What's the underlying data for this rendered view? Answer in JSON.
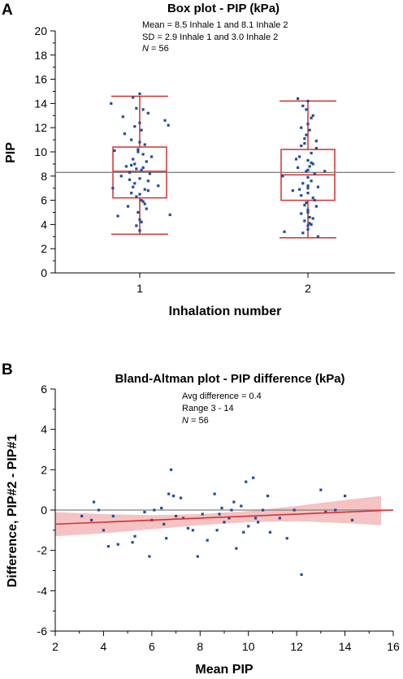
{
  "chart_data": [
    {
      "panel": "A",
      "type": "box",
      "title": "Box plot - PIP (kPa)",
      "annotations": [
        "Mean = 8.5 Inhale 1 and 8.1 Inhale 2",
        "SD = 2.9 Inhale 1 and 3.0 Inhale 2",
        "N = 56"
      ],
      "xlabel": "Inhalation number",
      "ylabel": "PIP",
      "categories": [
        "1",
        "2"
      ],
      "ylim": [
        0,
        20
      ],
      "yticks": [
        0,
        2,
        4,
        6,
        8,
        10,
        12,
        14,
        16,
        18,
        20
      ],
      "reference_line": 8.3,
      "colors": {
        "box": "#d62f2f",
        "points": "#1f4e9a",
        "reference": "#808080"
      },
      "boxes": [
        {
          "category": "1",
          "min": 3.2,
          "q1": 6.2,
          "median": 8.4,
          "q3": 10.4,
          "max": 14.6
        },
        {
          "category": "2",
          "min": 2.9,
          "q1": 6.0,
          "median": 8.1,
          "q3": 10.2,
          "max": 14.2
        }
      ],
      "points": [
        [
          0.83,
          14.0
        ],
        [
          1.0,
          14.8
        ],
        [
          0.96,
          14.5
        ],
        [
          0.98,
          13.6
        ],
        [
          1.02,
          13.5
        ],
        [
          0.9,
          12.9
        ],
        [
          1.05,
          13.2
        ],
        [
          0.97,
          12.1
        ],
        [
          1.01,
          11.8
        ],
        [
          1.15,
          12.6
        ],
        [
          1.17,
          12.2
        ],
        [
          0.95,
          11.0
        ],
        [
          1.0,
          10.8
        ],
        [
          1.03,
          10.6
        ],
        [
          0.85,
          10.1
        ],
        [
          0.99,
          10.2
        ],
        [
          1.02,
          9.8
        ],
        [
          0.96,
          9.4
        ],
        [
          1.04,
          9.2
        ],
        [
          0.92,
          8.8
        ],
        [
          0.98,
          8.6
        ],
        [
          1.01,
          8.5
        ],
        [
          0.94,
          8.3
        ],
        [
          1.06,
          8.2
        ],
        [
          0.89,
          8.0
        ],
        [
          1.0,
          7.8
        ],
        [
          1.05,
          7.6
        ],
        [
          0.97,
          7.4
        ],
        [
          0.84,
          7.0
        ],
        [
          1.03,
          6.9
        ],
        [
          1.11,
          7.2
        ],
        [
          0.95,
          6.6
        ],
        [
          1.0,
          6.5
        ],
        [
          0.98,
          6.3
        ],
        [
          1.02,
          5.9
        ],
        [
          0.93,
          5.5
        ],
        [
          1.04,
          5.3
        ],
        [
          0.99,
          5.0
        ],
        [
          0.87,
          4.7
        ],
        [
          1.18,
          4.8
        ],
        [
          1.01,
          4.2
        ],
        [
          0.98,
          3.9
        ],
        [
          1.0,
          3.5
        ],
        [
          0.95,
          8.9
        ],
        [
          1.07,
          9.6
        ],
        [
          0.91,
          11.5
        ],
        [
          1.0,
          12.4
        ],
        [
          0.96,
          7.1
        ],
        [
          1.03,
          5.7
        ],
        [
          0.99,
          10.0
        ],
        [
          1.01,
          6.0
        ],
        [
          0.97,
          9.0
        ],
        [
          1.02,
          8.7
        ],
        [
          0.94,
          7.7
        ],
        [
          1.05,
          6.8
        ],
        [
          1.0,
          4.4
        ],
        [
          1.94,
          14.4
        ],
        [
          2.0,
          14.2
        ],
        [
          1.99,
          13.5
        ],
        [
          2.03,
          13.0
        ],
        [
          2.0,
          12.3
        ],
        [
          2.01,
          11.8
        ],
        [
          1.98,
          11.1
        ],
        [
          2.05,
          10.9
        ],
        [
          1.96,
          10.5
        ],
        [
          2.02,
          9.9
        ],
        [
          1.95,
          9.6
        ],
        [
          2.0,
          9.3
        ],
        [
          2.03,
          9.0
        ],
        [
          1.94,
          8.7
        ],
        [
          1.99,
          8.4
        ],
        [
          2.1,
          8.4
        ],
        [
          2.04,
          8.2
        ],
        [
          1.85,
          8.0
        ],
        [
          2.0,
          7.9
        ],
        [
          2.02,
          7.6
        ],
        [
          1.97,
          7.4
        ],
        [
          2.06,
          7.1
        ],
        [
          1.91,
          6.8
        ],
        [
          2.0,
          6.6
        ],
        [
          1.96,
          6.4
        ],
        [
          2.03,
          6.2
        ],
        [
          1.99,
          5.8
        ],
        [
          2.05,
          5.5
        ],
        [
          2.0,
          5.2
        ],
        [
          1.96,
          4.9
        ],
        [
          2.01,
          4.6
        ],
        [
          1.98,
          4.3
        ],
        [
          2.02,
          4.0
        ],
        [
          2.0,
          3.6
        ],
        [
          1.97,
          3.3
        ],
        [
          2.06,
          3.0
        ],
        [
          1.86,
          3.4
        ],
        [
          2.0,
          5.0
        ],
        [
          1.98,
          10.7
        ],
        [
          2.02,
          12.8
        ],
        [
          2.0,
          7.0
        ],
        [
          1.93,
          9.4
        ],
        [
          2.04,
          6.0
        ],
        [
          1.99,
          11.4
        ],
        [
          2.01,
          8.8
        ],
        [
          2.03,
          4.5
        ],
        [
          1.95,
          6.9
        ],
        [
          2.0,
          3.9
        ],
        [
          1.97,
          13.8
        ],
        [
          2.02,
          9.1
        ],
        [
          2.0,
          7.2
        ],
        [
          1.98,
          5.6
        ],
        [
          2.05,
          10.3
        ],
        [
          2.01,
          4.1
        ],
        [
          1.96,
          12.0
        ],
        [
          2.0,
          8.5
        ]
      ]
    },
    {
      "panel": "B",
      "type": "scatter",
      "title": "Bland-Altman plot - PIP difference (kPa)",
      "annotations": [
        "Avg difference = 0.4",
        "Range 3 - 14",
        "N = 56"
      ],
      "xlabel": "Mean PIP",
      "ylabel": "Difference, PIP#2 - PIP#1",
      "xlim": [
        2,
        16
      ],
      "ylim": [
        -6,
        6
      ],
      "xticks": [
        2,
        4,
        6,
        8,
        10,
        12,
        14,
        16
      ],
      "yticks": [
        -6,
        -4,
        -2,
        0,
        2,
        4,
        6
      ],
      "zero_line": 0,
      "regression": {
        "x": [
          2,
          16
        ],
        "y": [
          -0.7,
          0.0
        ]
      },
      "confidence_band": {
        "x": [
          2,
          4,
          6,
          8,
          10,
          12,
          14,
          15.5
        ],
        "lower": [
          -1.3,
          -1.15,
          -0.95,
          -0.75,
          -0.6,
          -0.55,
          -0.65,
          -0.75
        ],
        "upper": [
          -0.1,
          -0.2,
          -0.25,
          -0.2,
          -0.05,
          0.2,
          0.5,
          0.7
        ]
      },
      "colors": {
        "points": "#1f4e9a",
        "regression": "#d62f2f",
        "band": "#f3b8b8",
        "zero": "#808080"
      },
      "points": [
        [
          3.1,
          -0.3
        ],
        [
          3.5,
          -0.5
        ],
        [
          3.6,
          0.4
        ],
        [
          3.8,
          0.0
        ],
        [
          4.0,
          -1.0
        ],
        [
          4.2,
          -1.8
        ],
        [
          4.4,
          -0.3
        ],
        [
          4.6,
          -1.7
        ],
        [
          5.2,
          -1.6
        ],
        [
          5.3,
          -1.3
        ],
        [
          5.7,
          -0.1
        ],
        [
          5.9,
          -2.3
        ],
        [
          6.0,
          -0.5
        ],
        [
          6.1,
          0.0
        ],
        [
          6.4,
          0.1
        ],
        [
          6.5,
          -0.7
        ],
        [
          6.6,
          -1.4
        ],
        [
          6.7,
          0.8
        ],
        [
          6.8,
          2.0
        ],
        [
          6.9,
          0.7
        ],
        [
          7.0,
          -0.3
        ],
        [
          7.2,
          0.6
        ],
        [
          7.3,
          -0.4
        ],
        [
          7.5,
          -0.9
        ],
        [
          7.7,
          -1.0
        ],
        [
          7.9,
          -2.3
        ],
        [
          8.1,
          -0.2
        ],
        [
          8.3,
          -1.5
        ],
        [
          8.6,
          0.8
        ],
        [
          8.8,
          -0.2
        ],
        [
          8.9,
          0.1
        ],
        [
          9.0,
          -0.6
        ],
        [
          9.2,
          -0.4
        ],
        [
          9.4,
          0.4
        ],
        [
          9.5,
          -1.9
        ],
        [
          9.7,
          0.2
        ],
        [
          9.8,
          -1.1
        ],
        [
          9.9,
          1.4
        ],
        [
          10.0,
          -0.8
        ],
        [
          10.2,
          1.6
        ],
        [
          10.4,
          -0.6
        ],
        [
          10.6,
          0.0
        ],
        [
          10.8,
          0.7
        ],
        [
          10.9,
          -1.1
        ],
        [
          11.3,
          -0.4
        ],
        [
          11.6,
          -1.4
        ],
        [
          11.9,
          0.0
        ],
        [
          12.2,
          -3.2
        ],
        [
          13.0,
          1.0
        ],
        [
          13.2,
          -0.1
        ],
        [
          13.6,
          0.0
        ],
        [
          14.0,
          0.7
        ],
        [
          14.3,
          -0.5
        ],
        [
          8.7,
          -1.0
        ],
        [
          9.3,
          0.0
        ],
        [
          10.3,
          -0.4
        ]
      ]
    }
  ],
  "labels": {
    "panel_a": "A",
    "panel_b": "B",
    "title_a": "Box plot - PIP (kPa)",
    "ann_a1": "Mean = 8.5 Inhale 1 and 8.1 Inhale 2",
    "ann_a2": "SD = 2.9 Inhale 1 and 3.0 Inhale 2",
    "ann_a3": "N = 56",
    "xlabel_a": "Inhalation number",
    "ylabel_a": "PIP",
    "title_b": "Bland-Altman plot - PIP difference (kPa)",
    "ann_b1": "Avg difference = 0.4",
    "ann_b2": "Range 3 - 14",
    "ann_b3": "N = 56",
    "xlabel_b": "Mean PIP",
    "ylabel_b": "Difference, PIP#2 - PIP#1"
  }
}
